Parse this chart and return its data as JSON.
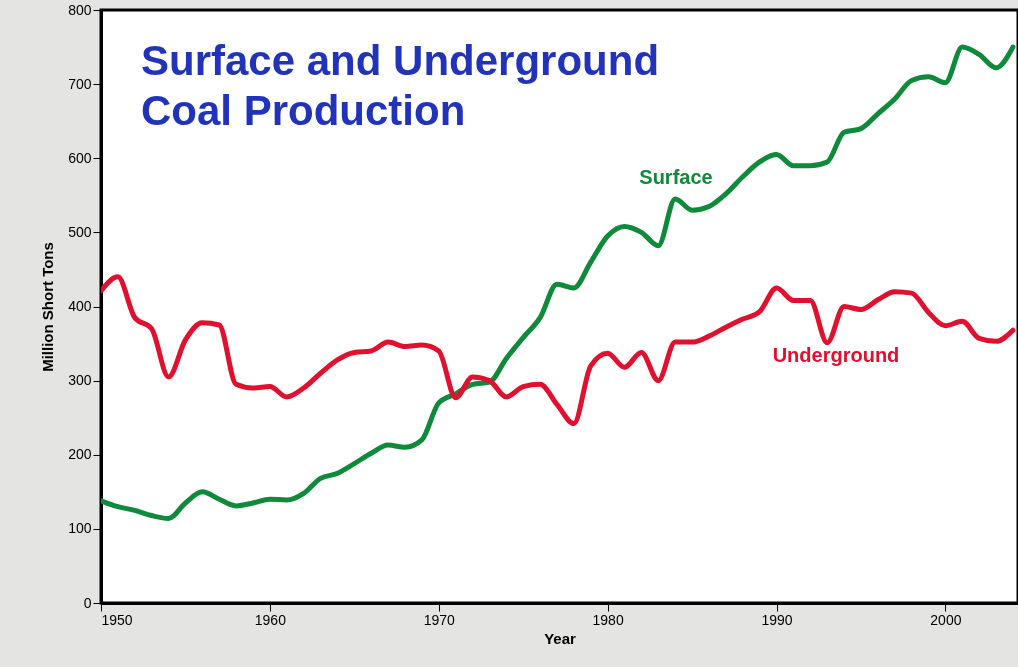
{
  "chart_data": {
    "type": "line",
    "title": "Surface and Underground Coal Production",
    "xlabel": "Year",
    "ylabel": "Million Short Tons",
    "x": [
      1950,
      1951,
      1952,
      1953,
      1954,
      1955,
      1956,
      1957,
      1958,
      1959,
      1960,
      1961,
      1962,
      1963,
      1964,
      1965,
      1966,
      1967,
      1968,
      1969,
      1970,
      1971,
      1972,
      1973,
      1974,
      1975,
      1976,
      1977,
      1978,
      1979,
      1980,
      1981,
      1982,
      1983,
      1984,
      1985,
      1986,
      1987,
      1988,
      1989,
      1990,
      1991,
      1992,
      1993,
      1994,
      1995,
      1996,
      1997,
      1998,
      1999,
      2000,
      2001,
      2002,
      2003,
      2004
    ],
    "series": [
      {
        "name": "Surface",
        "color": "#0e8a3a",
        "values": [
          138,
          130,
          125,
          118,
          114,
          135,
          150,
          140,
          131,
          135,
          140,
          139,
          148,
          168,
          175,
          188,
          202,
          213,
          210,
          220,
          270,
          282,
          295,
          298,
          330,
          358,
          385,
          430,
          425,
          460,
          495,
          508,
          500,
          482,
          545,
          530,
          535,
          552,
          575,
          595,
          605,
          590,
          590,
          595,
          635,
          640,
          660,
          680,
          705,
          710,
          702,
          750,
          740,
          722,
          750
        ]
      },
      {
        "name": "Underground",
        "color": "#e0102e",
        "values": [
          421,
          440,
          385,
          370,
          305,
          355,
          378,
          375,
          295,
          290,
          292,
          278,
          290,
          310,
          328,
          338,
          340,
          352,
          346,
          348,
          340,
          277,
          305,
          300,
          278,
          292,
          295,
          268,
          242,
          320,
          337,
          318,
          338,
          300,
          352,
          352,
          360,
          372,
          383,
          393,
          425,
          408,
          408,
          351,
          400,
          396,
          409,
          420,
          418,
          392,
          374,
          380,
          357,
          353,
          368
        ]
      }
    ],
    "xlim": [
      1950,
      2004.3
    ],
    "xticks": [
      1950,
      1960,
      1970,
      1980,
      1990,
      2000
    ],
    "ylim": [
      0,
      800
    ],
    "yticks": [
      0,
      100,
      200,
      300,
      400,
      500,
      600,
      700,
      800
    ],
    "grid": false,
    "marker": "none",
    "line_style": "solid"
  }
}
